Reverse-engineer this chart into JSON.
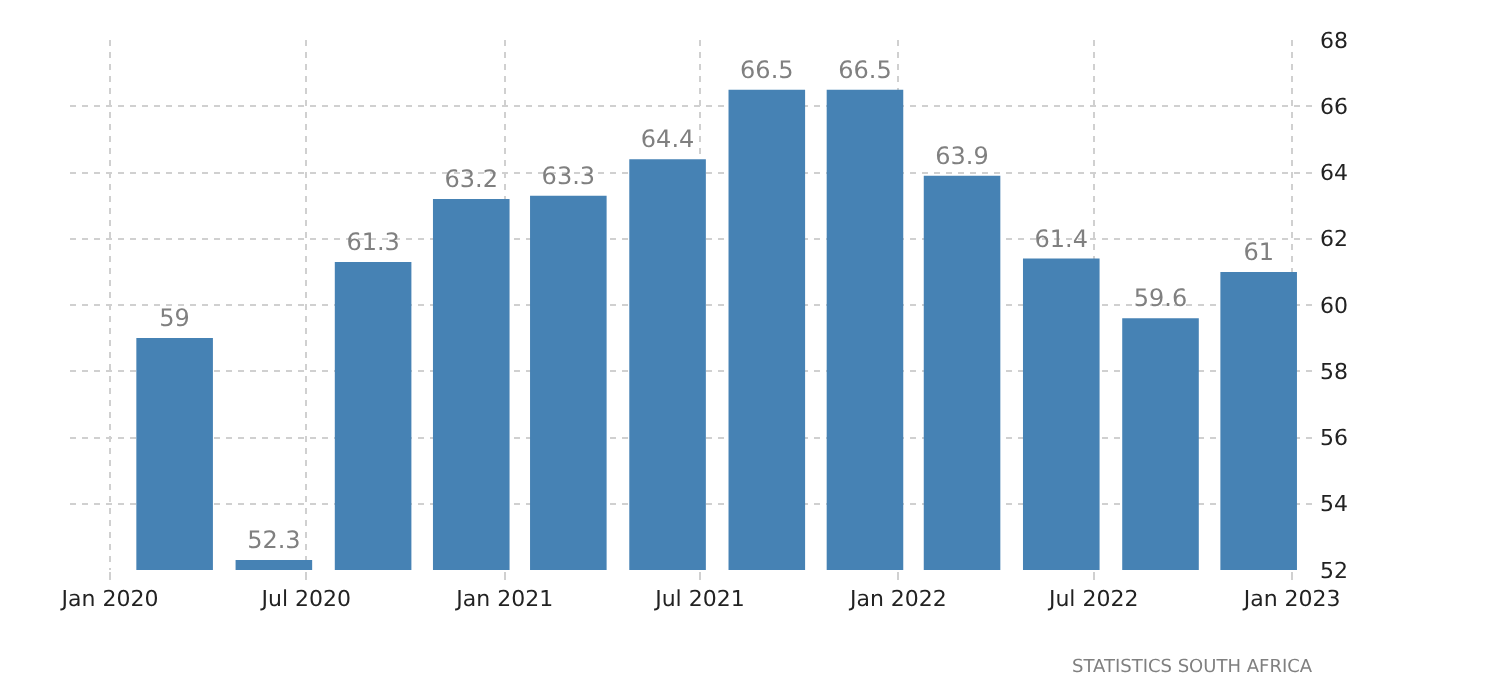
{
  "chart_data": {
    "type": "bar",
    "x": [
      "2020-03",
      "2020-06",
      "2020-09",
      "2020-12",
      "2021-03",
      "2021-06",
      "2021-09",
      "2021-12",
      "2022-03",
      "2022-06",
      "2022-09",
      "2022-12"
    ],
    "values": [
      59,
      52.3,
      61.3,
      63.2,
      63.3,
      64.4,
      66.5,
      66.5,
      63.9,
      61.4,
      59.6,
      61
    ],
    "color": "#4682b4",
    "data_labels": true,
    "xlim": [
      "2019-11-25",
      "2023-01-25"
    ],
    "xticks": [
      {
        "value": "2020-01",
        "label": "Jan 2020"
      },
      {
        "value": "2020-07",
        "label": "Jul 2020"
      },
      {
        "value": "2021-01",
        "label": "Jan 2021"
      },
      {
        "value": "2021-07",
        "label": "Jul 2021"
      },
      {
        "value": "2022-01",
        "label": "Jan 2022"
      },
      {
        "value": "2022-07",
        "label": "Jul 2022"
      },
      {
        "value": "2023-01",
        "label": "Jan 2023"
      }
    ],
    "ylim": [
      52,
      68
    ],
    "yticks": [
      52,
      54,
      56,
      58,
      60,
      62,
      64,
      66,
      68
    ],
    "grid": true,
    "annotations": [
      "STATISTICS SOUTH AFRICA"
    ]
  }
}
